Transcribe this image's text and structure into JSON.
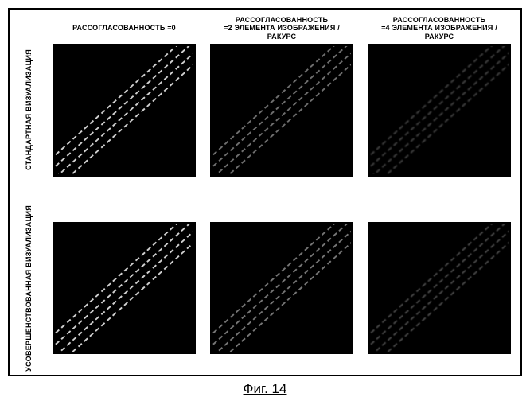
{
  "columns": [
    {
      "line1": "",
      "line2": "РАССОГЛАСОВАННОСТЬ =0"
    },
    {
      "line1": "РАССОГЛАСОВАННОСТЬ",
      "line2": "=2 ЭЛЕМЕНТА ИЗОБРАЖЕНИЯ / РАКУРС"
    },
    {
      "line1": "РАССОГЛАСОВАННОСТЬ",
      "line2": "=4 ЭЛЕМЕНТА ИЗОБРАЖЕНИЯ / РАКУРС"
    }
  ],
  "rows": [
    {
      "label": "СТАНДАРТНАЯ ВИЗУАЛИЗАЦИЯ"
    },
    {
      "label": "УСОВЕРШЕНСТВОВАННАЯ ВИЗУАЛИЗАЦИЯ"
    }
  ],
  "panels": {
    "bands": 4,
    "band_spacing": 11,
    "angle_deg": 42,
    "dash_len": 6,
    "gap_len": 4,
    "stroke_width": 2,
    "bg_color": "#000000",
    "stripe_color": "#cfcfcf",
    "stripe_color_dim": "#8a8a8a",
    "stripe_color_dimmer": "#666666",
    "cells": [
      [
        {
          "opacity": 1.0,
          "blur": 0,
          "color_key": "stripe_color"
        },
        {
          "opacity": 0.8,
          "blur": 0.4,
          "color_key": "stripe_color_dim"
        },
        {
          "opacity": 0.65,
          "blur": 0.8,
          "color_key": "stripe_color_dimmer"
        }
      ],
      [
        {
          "opacity": 1.0,
          "blur": 0,
          "color_key": "stripe_color"
        },
        {
          "opacity": 0.85,
          "blur": 0.3,
          "color_key": "stripe_color_dim"
        },
        {
          "opacity": 0.7,
          "blur": 0.6,
          "color_key": "stripe_color_dimmer"
        }
      ]
    ]
  },
  "caption": "Фиг. 14"
}
